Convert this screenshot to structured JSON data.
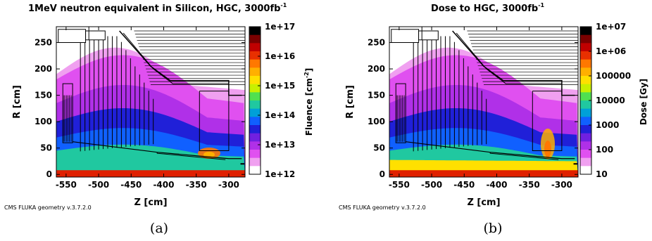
{
  "chart_data": [
    {
      "type": "heatmap",
      "title": "1MeV neutron equivalent in Silicon, HGC, 3000fb",
      "title_sup": "-1",
      "xlabel": "Z [cm]",
      "ylabel": "R [cm]",
      "xlim": [
        -565,
        -275
      ],
      "ylim": [
        -5,
        280
      ],
      "x_ticks": [
        -550,
        -500,
        -450,
        -400,
        -350,
        -300
      ],
      "x_tick_labels": [
        "-550",
        "-500",
        "-450",
        "-400",
        "-350",
        "-300"
      ],
      "y_ticks": [
        0,
        50,
        100,
        150,
        200,
        250
      ],
      "y_tick_labels": [
        "0",
        "50",
        "100",
        "150",
        "200",
        "250"
      ],
      "colorbar": {
        "label": "Fluence [cm",
        "label_sup": "-2",
        "label_end": "]",
        "scale": "log",
        "ticks": [
          "1e+17",
          "1e+16",
          "1e+15",
          "1e+14",
          "1e+13",
          "1e+12"
        ],
        "colors": [
          "#000000",
          "#7a0000",
          "#c00000",
          "#e83000",
          "#ff7800",
          "#ffb000",
          "#ffe000",
          "#c8f000",
          "#50e050",
          "#20c8a0",
          "#00a0d8",
          "#1060ff",
          "#2020d8",
          "#7020e0",
          "#b030e8",
          "#e050f0",
          "#f0a0f0",
          "#ffffff"
        ]
      },
      "bands": [
        {
          "r": 0,
          "color": "#e02000",
          "label": "1e+16"
        },
        {
          "r": 6,
          "color": "#c8f000",
          "label": "3e+14"
        },
        {
          "r": 45,
          "color": "#20c8a0",
          "label": "1.5e+14"
        },
        {
          "r": 70,
          "color": "#1060ff",
          "label": "8e+13"
        },
        {
          "r": 100,
          "color": "#2020d8",
          "label": "5e+13"
        },
        {
          "r": 135,
          "color": "#b030e8",
          "label": "2e+13"
        },
        {
          "r": 180,
          "color": "#e050f0",
          "label": "1e+13"
        }
      ],
      "footnote": "CMS FLUKA geometry v.3.7.2.0",
      "caption": "(a)"
    },
    {
      "type": "heatmap",
      "title": "Dose to HGC, 3000fb",
      "title_sup": "-1",
      "xlabel": "Z [cm]",
      "ylabel": "R [cm]",
      "xlim": [
        -565,
        -275
      ],
      "ylim": [
        -5,
        280
      ],
      "x_ticks": [
        -550,
        -500,
        -450,
        -400,
        -350,
        -300
      ],
      "x_tick_labels": [
        "-550",
        "-500",
        "-450",
        "-400",
        "-350",
        "-300"
      ],
      "y_ticks": [
        0,
        50,
        100,
        150,
        200,
        250
      ],
      "y_tick_labels": [
        "0",
        "50",
        "100",
        "150",
        "200",
        "250"
      ],
      "colorbar": {
        "label": "Dose [Gy]",
        "label_sup": "",
        "label_end": "",
        "scale": "log",
        "ticks": [
          "1e+07",
          "1e+06",
          "100000",
          "10000",
          "1000",
          "100",
          "10"
        ],
        "colors": [
          "#000000",
          "#7a0000",
          "#c00000",
          "#e83000",
          "#ff7800",
          "#ffb000",
          "#ffe000",
          "#c8f000",
          "#50e050",
          "#20c8a0",
          "#00a0d8",
          "#1060ff",
          "#2020d8",
          "#7020e0",
          "#b030e8",
          "#e050f0",
          "#f0a0f0",
          "#ffffff"
        ]
      },
      "bands": [
        {
          "r": 0,
          "color": "#e02000",
          "label": "1e+05"
        },
        {
          "r": 25,
          "color": "#ffe000",
          "label": "3e+04"
        },
        {
          "r": 45,
          "color": "#20c8a0",
          "label": "1e+04"
        },
        {
          "r": 70,
          "color": "#1060ff",
          "label": "3e+03"
        },
        {
          "r": 100,
          "color": "#2020d8",
          "label": "1e+03"
        },
        {
          "r": 135,
          "color": "#b030e8",
          "label": "3e+02"
        },
        {
          "r": 180,
          "color": "#e050f0",
          "label": "1e+02"
        }
      ],
      "footnote": "CMS FLUKA geometry v.3.7.2.0",
      "caption": "(b)"
    }
  ]
}
